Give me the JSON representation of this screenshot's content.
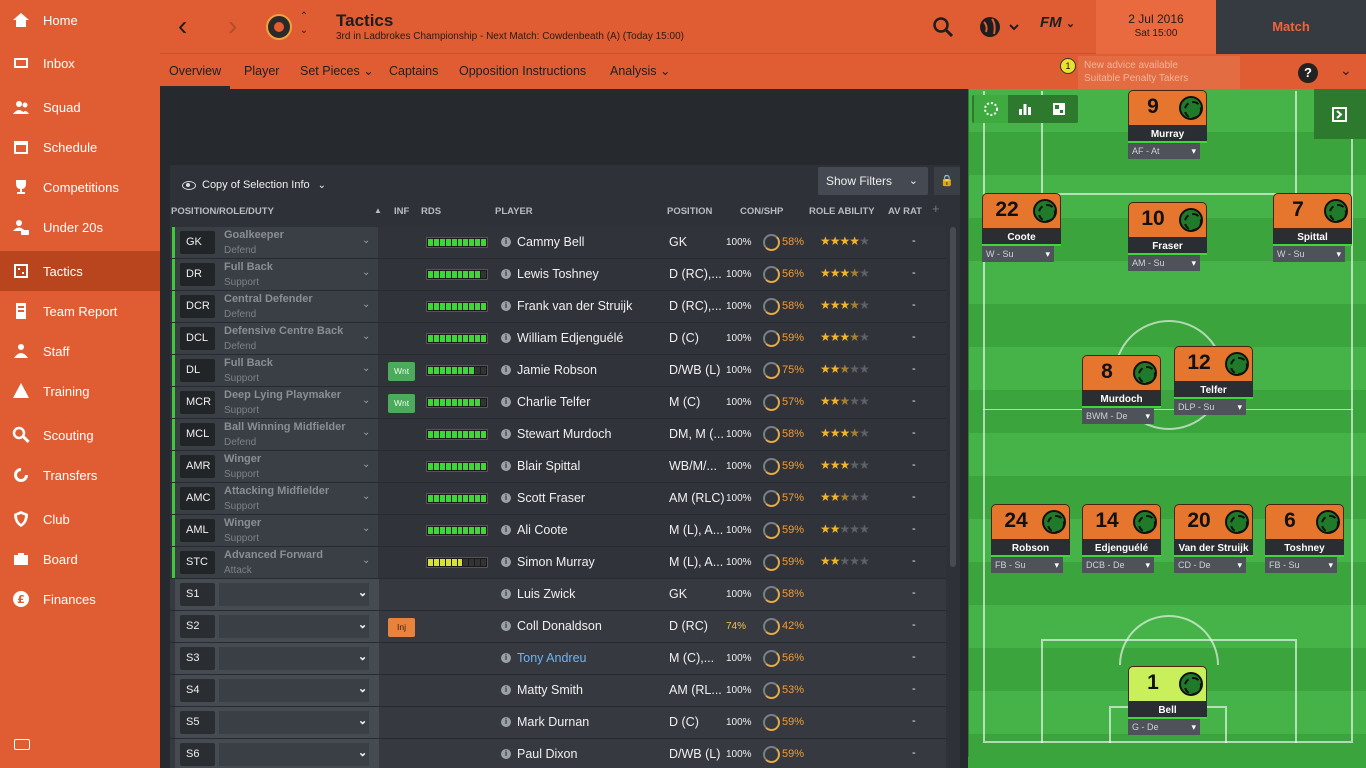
{
  "sidebar": {
    "items": [
      {
        "label": "Home",
        "icon": "home-icon"
      },
      {
        "label": "Inbox",
        "icon": "inbox-icon"
      },
      {
        "label": "Squad",
        "icon": "squad-icon"
      },
      {
        "label": "Schedule",
        "icon": "calendar-icon"
      },
      {
        "label": "Competitions",
        "icon": "trophy-icon"
      },
      {
        "label": "Under 20s",
        "icon": "under20-icon"
      },
      {
        "label": "Tactics",
        "icon": "tactics-icon",
        "active": true
      },
      {
        "label": "Team Report",
        "icon": "report-icon"
      },
      {
        "label": "Staff",
        "icon": "staff-icon"
      },
      {
        "label": "Training",
        "icon": "training-icon"
      },
      {
        "label": "Scouting",
        "icon": "scouting-icon"
      },
      {
        "label": "Transfers",
        "icon": "transfers-icon"
      },
      {
        "label": "Club",
        "icon": "club-icon"
      },
      {
        "label": "Board",
        "icon": "board-icon"
      },
      {
        "label": "Finances",
        "icon": "finances-icon"
      }
    ]
  },
  "header": {
    "title": "Tactics",
    "subtitle": "3rd in Ladbrokes Championship - Next Match: Cowdenbeath (A) (Today 15:00)",
    "fm": "FM",
    "date": "2 Jul 2016",
    "time": "Sat 15:00",
    "match": "Match"
  },
  "subnav": {
    "tabs": [
      "Overview",
      "Player",
      "Set Pieces ⌄",
      "Captains",
      "Opposition Instructions",
      "Analysis ⌄"
    ],
    "advice_line1": "New advice available",
    "advice_line2": "Suitable Penalty Takers",
    "advice_count": "1",
    "help": "?"
  },
  "panel": {
    "view_label": "Copy of Selection Info",
    "filters_label": "Show Filters",
    "headers": {
      "pos": "POSITION/ROLE/DUTY",
      "inf": "INF",
      "rds": "RDS",
      "player": "PLAYER",
      "position": "POSITION",
      "con": "CON/SHP",
      "ability": "ROLE ABILITY",
      "avrat": "AV RAT"
    }
  },
  "starters": [
    {
      "pos": "GK",
      "role": "Goalkeeper",
      "duty": "Defend",
      "rds": 10,
      "name": "Cammy Bell",
      "position": "GK",
      "con": "100%",
      "shp": "58%",
      "stars": 4,
      "av": "-"
    },
    {
      "pos": "DR",
      "role": "Full Back",
      "duty": "Support",
      "rds": 9,
      "name": "Lewis Toshney",
      "position": "D (RC),...",
      "con": "100%",
      "shp": "56%",
      "stars": 3.5,
      "av": "-"
    },
    {
      "pos": "DCR",
      "role": "Central Defender",
      "duty": "Defend",
      "rds": 10,
      "name": "Frank van der Struijk",
      "position": "D (RC),...",
      "con": "100%",
      "shp": "58%",
      "stars": 3.5,
      "av": "-"
    },
    {
      "pos": "DCL",
      "role": "Defensive Centre Back",
      "duty": "Defend",
      "rds": 10,
      "name": "William Edjenguélé",
      "position": "D (C)",
      "con": "100%",
      "shp": "59%",
      "stars": 3.5,
      "av": "-"
    },
    {
      "pos": "DL",
      "role": "Full Back",
      "duty": "Support",
      "inf": "Wnt",
      "rds": 8,
      "name": "Jamie Robson",
      "position": "D/WB (L)",
      "con": "100%",
      "shp": "75%",
      "stars": 2.5,
      "av": "-"
    },
    {
      "pos": "MCR",
      "role": "Deep Lying Playmaker",
      "duty": "Support",
      "inf": "Wnt",
      "rds": 9,
      "name": "Charlie Telfer",
      "position": "M (C)",
      "con": "100%",
      "shp": "57%",
      "stars": 2.5,
      "av": "-"
    },
    {
      "pos": "MCL",
      "role": "Ball Winning Midfielder",
      "duty": "Defend",
      "rds": 10,
      "name": "Stewart Murdoch",
      "position": "DM, M (...",
      "con": "100%",
      "shp": "58%",
      "stars": 3.5,
      "av": "-"
    },
    {
      "pos": "AMR",
      "role": "Winger",
      "duty": "Support",
      "rds": 10,
      "name": "Blair Spittal",
      "position": "WB/M/...",
      "con": "100%",
      "shp": "59%",
      "stars": 3,
      "av": "-"
    },
    {
      "pos": "AMC",
      "role": "Attacking Midfielder",
      "duty": "Support",
      "rds": 10,
      "name": "Scott Fraser",
      "position": "AM (RLC)",
      "con": "100%",
      "shp": "57%",
      "stars": 2.5,
      "av": "-"
    },
    {
      "pos": "AML",
      "role": "Winger",
      "duty": "Support",
      "rds": 10,
      "name": "Ali Coote",
      "position": "M (L), A...",
      "con": "100%",
      "shp": "59%",
      "stars": 2,
      "av": "-"
    },
    {
      "pos": "STC",
      "role": "Advanced Forward",
      "duty": "Attack",
      "rds": 6,
      "rdsy": true,
      "name": "Simon Murray",
      "position": "M (L), A...",
      "con": "100%",
      "shp": "59%",
      "stars": 2,
      "av": "-"
    }
  ],
  "subs": [
    {
      "pos": "S1",
      "name": "Luis Zwick",
      "position": "GK",
      "con": "100%",
      "shp": "58%",
      "av": "-"
    },
    {
      "pos": "S2",
      "inf": "Inj",
      "name": "Coll Donaldson",
      "position": "D (RC)",
      "con": "74%",
      "shp": "42%",
      "av": "-",
      "low": true
    },
    {
      "pos": "S3",
      "name": "Tony Andreu",
      "position": "M (C),...",
      "con": "100%",
      "shp": "56%",
      "av": "-",
      "link": true
    },
    {
      "pos": "S4",
      "name": "Matty Smith",
      "position": "AM (RL...",
      "con": "100%",
      "shp": "53%",
      "av": "-"
    },
    {
      "pos": "S5",
      "name": "Mark Durnan",
      "position": "D (C)",
      "con": "100%",
      "shp": "59%",
      "av": "-"
    },
    {
      "pos": "S6",
      "name": "Paul Dixon",
      "position": "D/WB (L)",
      "con": "100%",
      "shp": "59%",
      "av": "-"
    }
  ],
  "pitch": [
    {
      "num": "9",
      "name": "Murray",
      "role": "AF - At"
    },
    {
      "num": "22",
      "name": "Coote",
      "role": "W - Su"
    },
    {
      "num": "10",
      "name": "Fraser",
      "role": "AM - Su"
    },
    {
      "num": "7",
      "name": "Spittal",
      "role": "W - Su"
    },
    {
      "num": "8",
      "name": "Murdoch",
      "role": "BWM - De"
    },
    {
      "num": "12",
      "name": "Telfer",
      "role": "DLP - Su"
    },
    {
      "num": "24",
      "name": "Robson",
      "role": "FB - Su"
    },
    {
      "num": "14",
      "name": "Edjenguélé",
      "role": "DCB - De"
    },
    {
      "num": "20",
      "name": "Van der Struijk",
      "role": "CD - De"
    },
    {
      "num": "6",
      "name": "Toshney",
      "role": "FB - Su"
    },
    {
      "num": "1",
      "name": "Bell",
      "role": "G - De",
      "gk": true
    }
  ]
}
